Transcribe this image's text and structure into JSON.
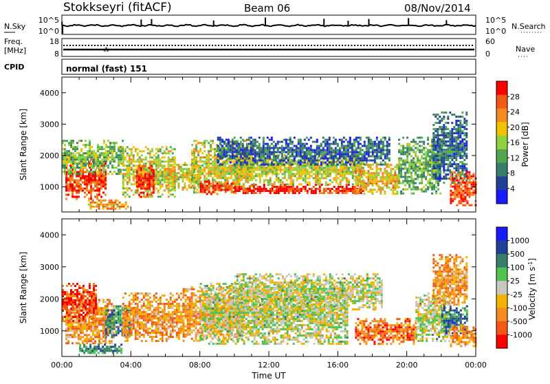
{
  "header": {
    "station": "Stokkseyri (fitACF)",
    "beam": "Beam 06",
    "date": "08/Nov/2014"
  },
  "summary_panels": {
    "nsky_label": "N.Sky",
    "nsky_ticks": [
      "10^5",
      "10^0"
    ],
    "nsearch_label": "N.Search",
    "nsearch_ticks": [
      "10^5",
      "10^0"
    ],
    "freq_label_1": "Freq.",
    "freq_label_2": "[MHz]",
    "freq_ticks": [
      "18",
      "8"
    ],
    "nave_label": "Nave",
    "nave_ticks": [
      "60",
      "0"
    ],
    "cpid_label": "CPID",
    "cpid_value": "normal (fast) 151"
  },
  "chart_data": [
    {
      "type": "heatmap",
      "panel": "power",
      "xlabel": "",
      "ylabel": "Slant Range [km]",
      "ylim": [
        200,
        4500
      ],
      "yticks": [
        "1000",
        "2000",
        "3000",
        "4000"
      ],
      "xlim_hours": [
        0,
        24
      ],
      "colorbar_label": "Power [dB]",
      "colorbar_ticks": [
        "28",
        "24",
        "20",
        "16",
        "12",
        "8",
        "4"
      ],
      "colorscale": [
        "#1a1aff",
        "#20409a",
        "#3a7d6a",
        "#4fa84f",
        "#8fd13f",
        "#f2c200",
        "#f58a1f",
        "#f25a14",
        "#ff0000"
      ],
      "regions": [
        {
          "t0": 0.2,
          "t1": 2.5,
          "r0": 600,
          "r1": 1900,
          "level": 0.85
        },
        {
          "t0": 0.0,
          "t1": 3.5,
          "r0": 1400,
          "r1": 2500,
          "level": 0.45
        },
        {
          "t0": 3.5,
          "t1": 6.5,
          "r0": 700,
          "r1": 2300,
          "level": 0.55
        },
        {
          "t0": 4.3,
          "t1": 5.3,
          "r0": 700,
          "r1": 1700,
          "level": 0.9
        },
        {
          "t0": 6.0,
          "t1": 8.0,
          "r0": 900,
          "r1": 1800,
          "level": 0.6
        },
        {
          "t0": 7.5,
          "t1": 11.0,
          "r0": 800,
          "r1": 2500,
          "level": 0.55
        },
        {
          "t0": 8.0,
          "t1": 10.0,
          "r0": 800,
          "r1": 1200,
          "level": 0.85
        },
        {
          "t0": 10.0,
          "t1": 17.5,
          "r0": 780,
          "r1": 1100,
          "level": 0.92
        },
        {
          "t0": 10.0,
          "t1": 17.5,
          "r0": 1100,
          "r1": 2100,
          "level": 0.55
        },
        {
          "t0": 9.0,
          "t1": 19.0,
          "r0": 1700,
          "r1": 2600,
          "level": 0.22
        },
        {
          "t0": 17.0,
          "t1": 19.5,
          "r0": 800,
          "r1": 1800,
          "level": 0.62
        },
        {
          "t0": 19.5,
          "t1": 22.0,
          "r0": 800,
          "r1": 2600,
          "level": 0.4
        },
        {
          "t0": 21.5,
          "t1": 23.5,
          "r0": 1100,
          "r1": 3400,
          "level": 0.25
        },
        {
          "t0": 22.5,
          "t1": 24.0,
          "r0": 400,
          "r1": 1500,
          "level": 0.85
        },
        {
          "t0": 1.5,
          "t1": 3.8,
          "r0": 300,
          "r1": 600,
          "level": 0.7
        }
      ]
    },
    {
      "type": "heatmap",
      "panel": "velocity",
      "xlabel": "Time UT",
      "ylabel": "Slant Range [km]",
      "ylim": [
        200,
        4500
      ],
      "yticks": [
        "1000",
        "2000",
        "3000",
        "4000"
      ],
      "xlim_hours": [
        0,
        24
      ],
      "xticks": [
        "00:00",
        "04:00",
        "08:00",
        "12:00",
        "16:00",
        "20:00",
        "00:00"
      ],
      "colorbar_label": "Velocity [m s^-1]",
      "colorbar_ticks": [
        "1000",
        "500",
        "100",
        "25",
        "-25",
        "-100",
        "-500",
        "-1000"
      ],
      "colorscale": [
        "#ff0000",
        "#f25a14",
        "#f58a1f",
        "#f2b200",
        "#c8c8c0",
        "#4fc44f",
        "#3a7d6a",
        "#20409a",
        "#1a1aff"
      ],
      "regions": [
        {
          "t0": 0.2,
          "t1": 3.0,
          "r0": 600,
          "r1": 2000,
          "level": 0.3
        },
        {
          "t0": 0.0,
          "t1": 2.0,
          "r0": 1300,
          "r1": 2500,
          "level": 0.15
        },
        {
          "t0": 2.5,
          "t1": 4.0,
          "r0": 800,
          "r1": 1800,
          "level": 0.72
        },
        {
          "t0": 3.5,
          "t1": 7.0,
          "r0": 700,
          "r1": 2200,
          "level": 0.3
        },
        {
          "t0": 7.0,
          "t1": 10.5,
          "r0": 700,
          "r1": 2400,
          "level": 0.3
        },
        {
          "t0": 8.0,
          "t1": 16.5,
          "r0": 600,
          "r1": 2500,
          "level": 0.5
        },
        {
          "t0": 10.0,
          "t1": 18.5,
          "r0": 1700,
          "r1": 2800,
          "level": 0.5
        },
        {
          "t0": 17.0,
          "t1": 20.5,
          "r0": 600,
          "r1": 1400,
          "level": 0.22
        },
        {
          "t0": 20.5,
          "t1": 22.5,
          "r0": 700,
          "r1": 2200,
          "level": 0.5
        },
        {
          "t0": 22.0,
          "t1": 23.5,
          "r0": 900,
          "r1": 1800,
          "level": 0.75
        },
        {
          "t0": 22.5,
          "t1": 24.0,
          "r0": 500,
          "r1": 1200,
          "level": 0.3
        },
        {
          "t0": 1.0,
          "t1": 3.5,
          "r0": 300,
          "r1": 600,
          "level": 0.7
        },
        {
          "t0": 21.5,
          "t1": 23.5,
          "r0": 1800,
          "r1": 3400,
          "level": 0.3
        }
      ]
    }
  ]
}
